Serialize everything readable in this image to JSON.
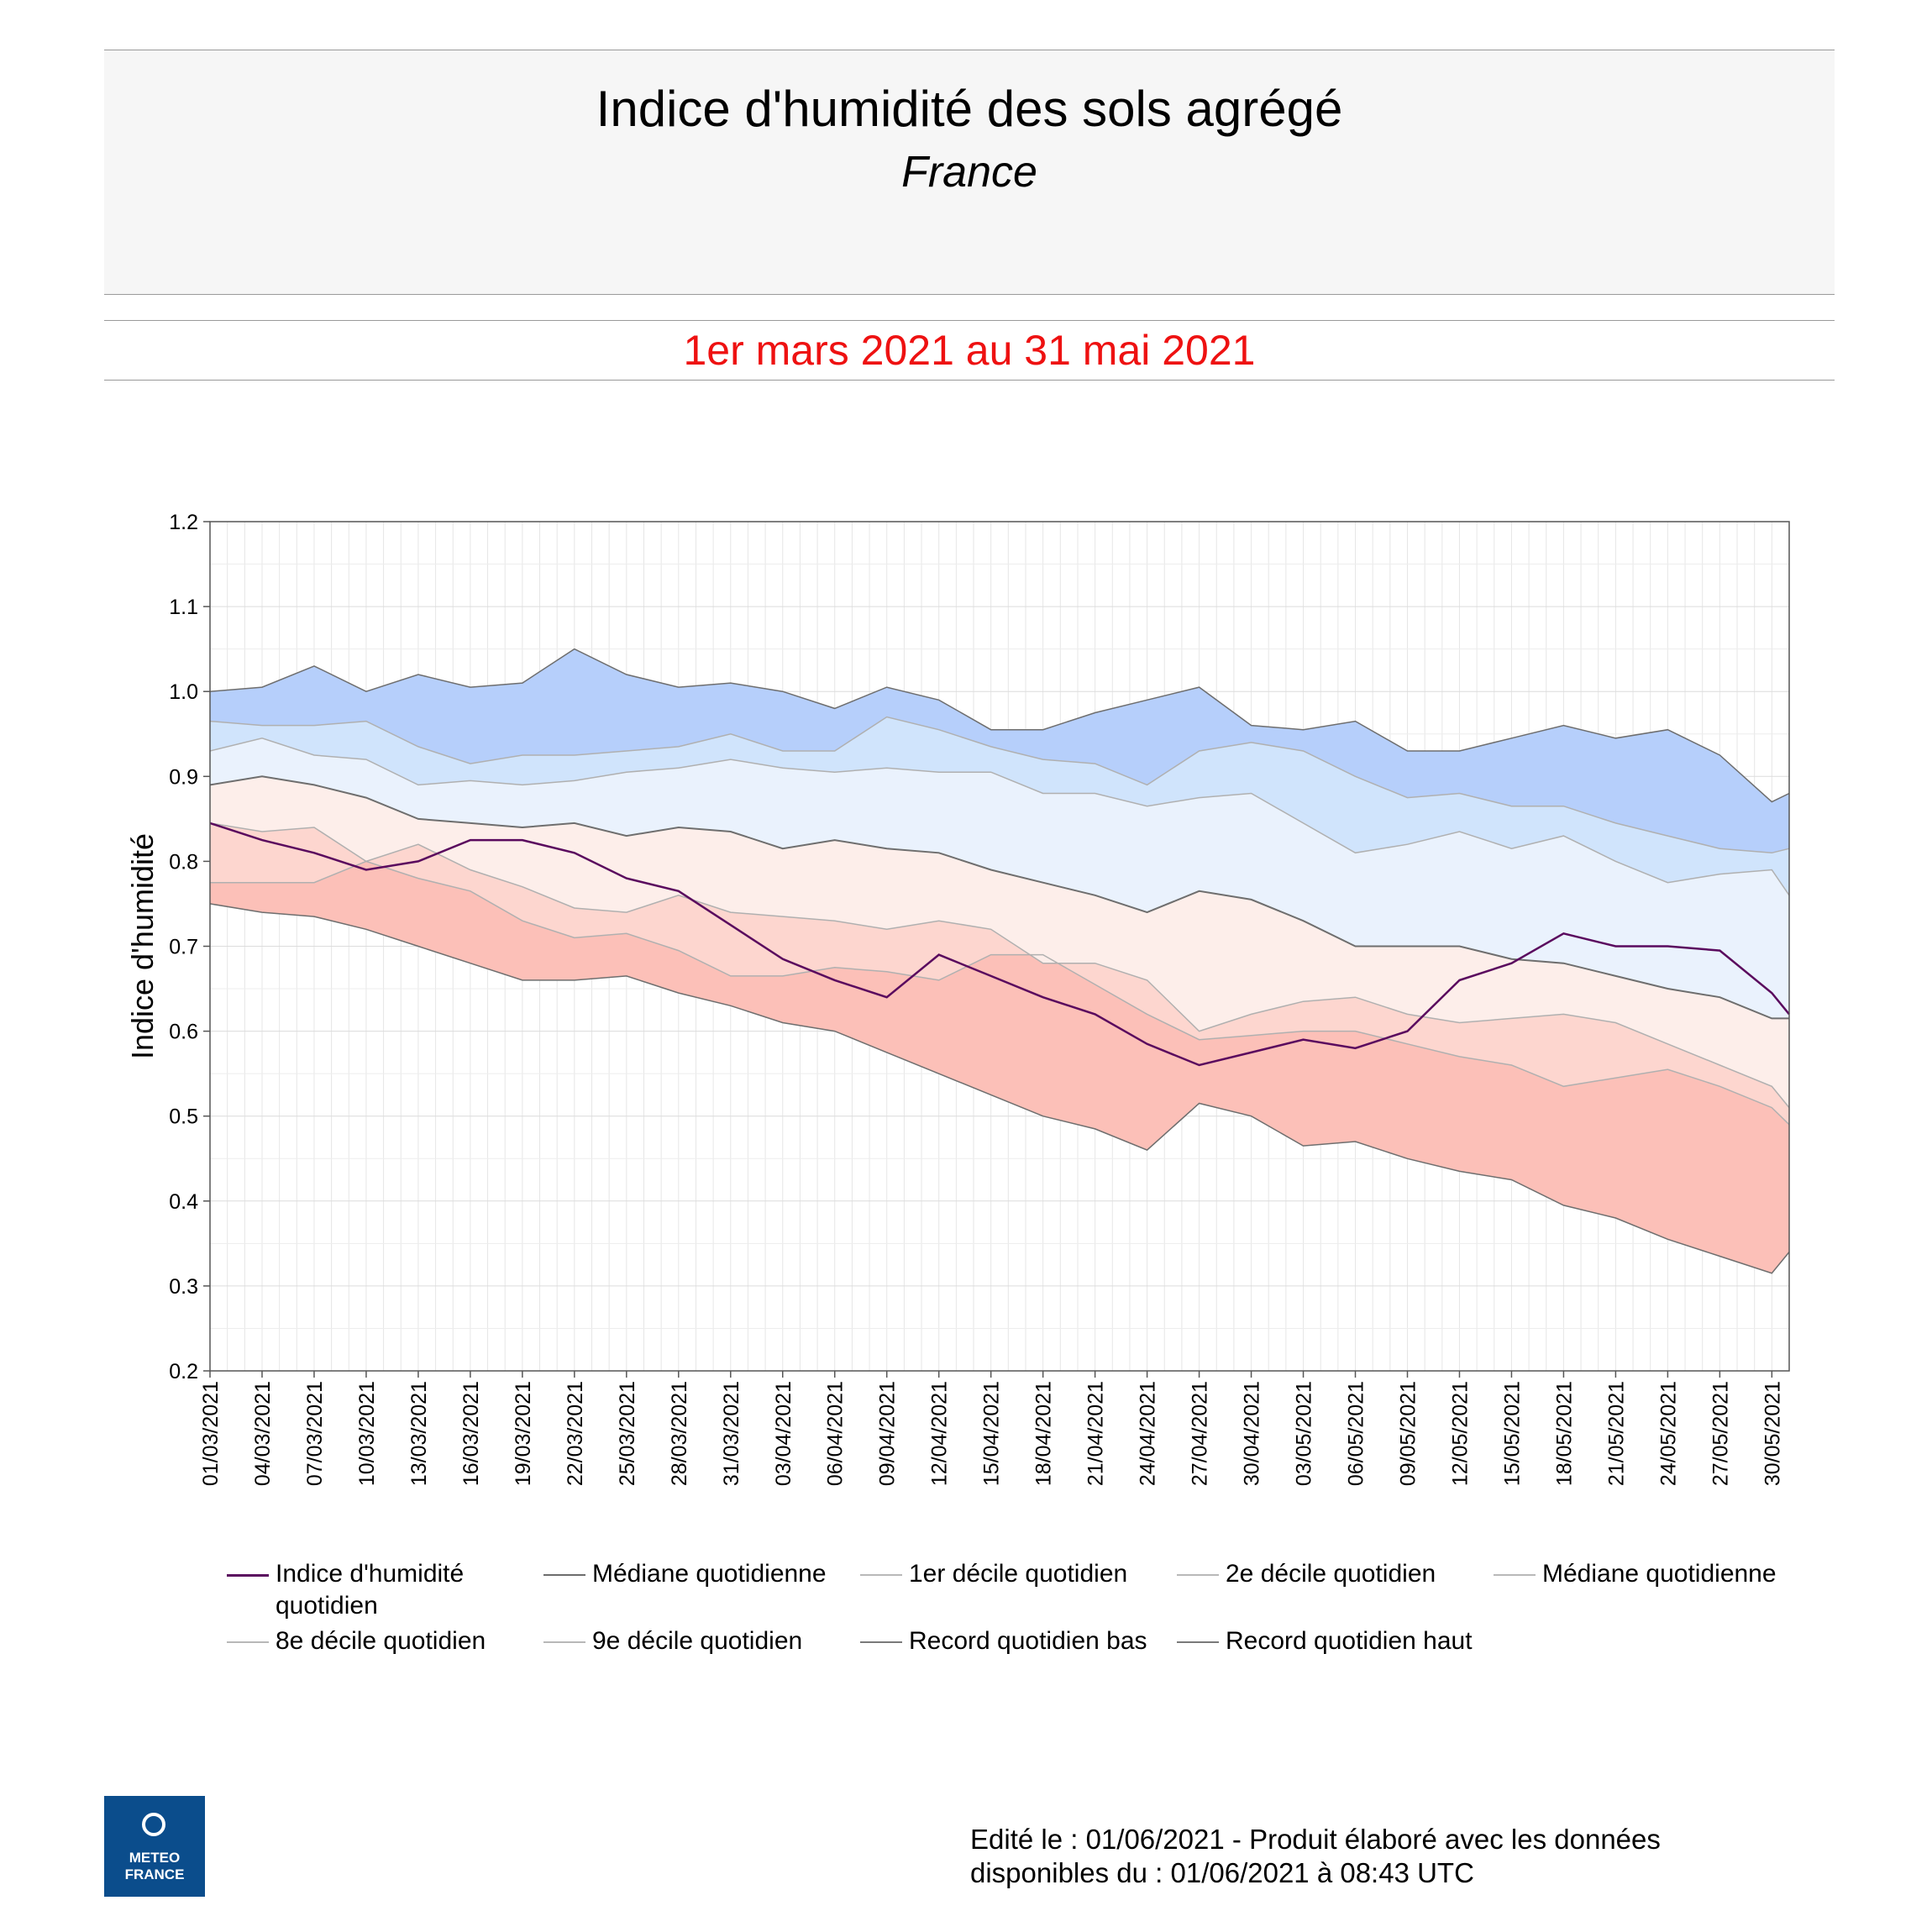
{
  "header": {
    "title": "Indice d'humidité des sols agrégé",
    "subtitle": "France",
    "period": "1er mars 2021 au 31 mai 2021",
    "period_color": "#ee1111"
  },
  "footer": {
    "line1": "Edité le : 01/06/2021 - Produit élaboré avec les données",
    "line2": "disponibles du : 01/06/2021 à 08:43 UTC"
  },
  "logo": {
    "line1": "METEO",
    "line2": "FRANCE",
    "color": "#0b4d8c"
  },
  "legend": [
    {
      "label": "Indice d'humidité quotidien",
      "color": "#5a0a5e"
    },
    {
      "label": "Médiane quotidienne",
      "color": "#6d6d6d"
    },
    {
      "label": "1er décile quotidien",
      "color": "#b8b8b8"
    },
    {
      "label": "2e décile quotidien",
      "color": "#b8b8b8"
    },
    {
      "label": "Médiane quotidienne",
      "color": "#b8b8b8"
    },
    {
      "label": "8e décile quotidien",
      "color": "#b8b8b8"
    },
    {
      "label": "9e décile quotidien",
      "color": "#b8b8b8"
    },
    {
      "label": "Record quotidien bas",
      "color": "#7a7a7a"
    },
    {
      "label": "Record quotidien haut",
      "color": "#7a7a7a"
    }
  ],
  "chart_data": {
    "type": "area",
    "ylabel": "Indice d'humidité",
    "ylim": [
      0.2,
      1.2
    ],
    "yticks": [
      "0.2",
      "0.3",
      "0.4",
      "0.5",
      "0.6",
      "0.7",
      "0.8",
      "0.9",
      "1.0",
      "1.1",
      "1.2"
    ],
    "xlim": [
      "2021-03-01",
      "2021-05-31"
    ],
    "xticks": [
      "01/03/2021",
      "04/03/2021",
      "07/03/2021",
      "10/03/2021",
      "13/03/2021",
      "16/03/2021",
      "19/03/2021",
      "22/03/2021",
      "25/03/2021",
      "28/03/2021",
      "31/03/2021",
      "03/04/2021",
      "06/04/2021",
      "09/04/2021",
      "12/04/2021",
      "15/04/2021",
      "18/04/2021",
      "21/04/2021",
      "24/04/2021",
      "27/04/2021",
      "30/04/2021",
      "03/05/2021",
      "06/05/2021",
      "09/05/2021",
      "12/05/2021",
      "15/05/2021",
      "18/05/2021",
      "21/05/2021",
      "24/05/2021",
      "27/05/2021",
      "30/05/2021"
    ],
    "grid": true,
    "legend_position": "bottom",
    "band_colors": [
      "#fcc0b8",
      "#fdd6cf",
      "#fdeeea",
      "#eaf2fd",
      "#d0e4fc",
      "#b6cffb"
    ],
    "x_days": [
      "2021-03-01",
      "2021-03-04",
      "2021-03-07",
      "2021-03-10",
      "2021-03-13",
      "2021-03-16",
      "2021-03-19",
      "2021-03-22",
      "2021-03-25",
      "2021-03-28",
      "2021-03-31",
      "2021-04-03",
      "2021-04-06",
      "2021-04-09",
      "2021-04-12",
      "2021-04-15",
      "2021-04-18",
      "2021-04-21",
      "2021-04-24",
      "2021-04-27",
      "2021-04-30",
      "2021-05-03",
      "2021-05-06",
      "2021-05-09",
      "2021-05-12",
      "2021-05-15",
      "2021-05-18",
      "2021-05-21",
      "2021-05-24",
      "2021-05-27",
      "2021-05-30",
      "2021-05-31"
    ],
    "series": [
      {
        "name": "Record quotidien bas",
        "values": [
          0.75,
          0.74,
          0.735,
          0.72,
          0.7,
          0.68,
          0.66,
          0.66,
          0.665,
          0.645,
          0.63,
          0.61,
          0.6,
          0.575,
          0.55,
          0.525,
          0.5,
          0.485,
          0.46,
          0.515,
          0.5,
          0.465,
          0.47,
          0.45,
          0.435,
          0.425,
          0.395,
          0.38,
          0.355,
          0.335,
          0.315,
          0.34
        ]
      },
      {
        "name": "1er décile quotidien",
        "values": [
          0.775,
          0.775,
          0.775,
          0.8,
          0.78,
          0.765,
          0.73,
          0.71,
          0.715,
          0.695,
          0.665,
          0.665,
          0.675,
          0.67,
          0.66,
          0.69,
          0.69,
          0.655,
          0.62,
          0.59,
          0.595,
          0.6,
          0.6,
          0.585,
          0.57,
          0.56,
          0.535,
          0.545,
          0.555,
          0.535,
          0.51,
          0.49
        ]
      },
      {
        "name": "2e décile quotidien",
        "values": [
          0.845,
          0.835,
          0.84,
          0.8,
          0.82,
          0.79,
          0.77,
          0.745,
          0.74,
          0.76,
          0.74,
          0.735,
          0.73,
          0.72,
          0.73,
          0.72,
          0.68,
          0.68,
          0.66,
          0.6,
          0.62,
          0.635,
          0.64,
          0.62,
          0.61,
          0.615,
          0.62,
          0.61,
          0.585,
          0.56,
          0.535,
          0.51
        ]
      },
      {
        "name": "Médiane quotidienne",
        "values": [
          0.89,
          0.9,
          0.89,
          0.875,
          0.85,
          0.845,
          0.84,
          0.845,
          0.83,
          0.84,
          0.835,
          0.815,
          0.825,
          0.815,
          0.81,
          0.79,
          0.775,
          0.76,
          0.74,
          0.765,
          0.755,
          0.73,
          0.7,
          0.7,
          0.7,
          0.685,
          0.68,
          0.665,
          0.65,
          0.64,
          0.615,
          0.615
        ]
      },
      {
        "name": "8e décile quotidien",
        "values": [
          0.93,
          0.945,
          0.925,
          0.92,
          0.89,
          0.895,
          0.89,
          0.895,
          0.905,
          0.91,
          0.92,
          0.91,
          0.905,
          0.91,
          0.905,
          0.905,
          0.88,
          0.88,
          0.865,
          0.875,
          0.88,
          0.845,
          0.81,
          0.82,
          0.835,
          0.815,
          0.83,
          0.8,
          0.775,
          0.785,
          0.79,
          0.76
        ]
      },
      {
        "name": "9e décile quotidien",
        "values": [
          0.965,
          0.96,
          0.96,
          0.965,
          0.935,
          0.915,
          0.925,
          0.925,
          0.93,
          0.935,
          0.95,
          0.93,
          0.93,
          0.97,
          0.955,
          0.935,
          0.92,
          0.915,
          0.89,
          0.93,
          0.94,
          0.93,
          0.9,
          0.875,
          0.88,
          0.865,
          0.865,
          0.845,
          0.83,
          0.815,
          0.81,
          0.815
        ]
      },
      {
        "name": "Record quotidien haut",
        "values": [
          1.0,
          1.005,
          1.03,
          1.0,
          1.02,
          1.005,
          1.01,
          1.05,
          1.02,
          1.005,
          1.01,
          1.0,
          0.98,
          1.005,
          0.99,
          0.955,
          0.955,
          0.975,
          0.99,
          1.005,
          0.96,
          0.955,
          0.965,
          0.93,
          0.93,
          0.945,
          0.96,
          0.945,
          0.955,
          0.925,
          0.87,
          0.88
        ]
      },
      {
        "name": "Indice d'humidité quotidien",
        "values": [
          0.845,
          0.825,
          0.81,
          0.79,
          0.8,
          0.825,
          0.825,
          0.81,
          0.78,
          0.765,
          0.725,
          0.685,
          0.66,
          0.64,
          0.69,
          0.665,
          0.64,
          0.62,
          0.585,
          0.56,
          0.575,
          0.59,
          0.58,
          0.6,
          0.66,
          0.68,
          0.715,
          0.7,
          0.7,
          0.695,
          0.645,
          0.62
        ]
      }
    ]
  }
}
